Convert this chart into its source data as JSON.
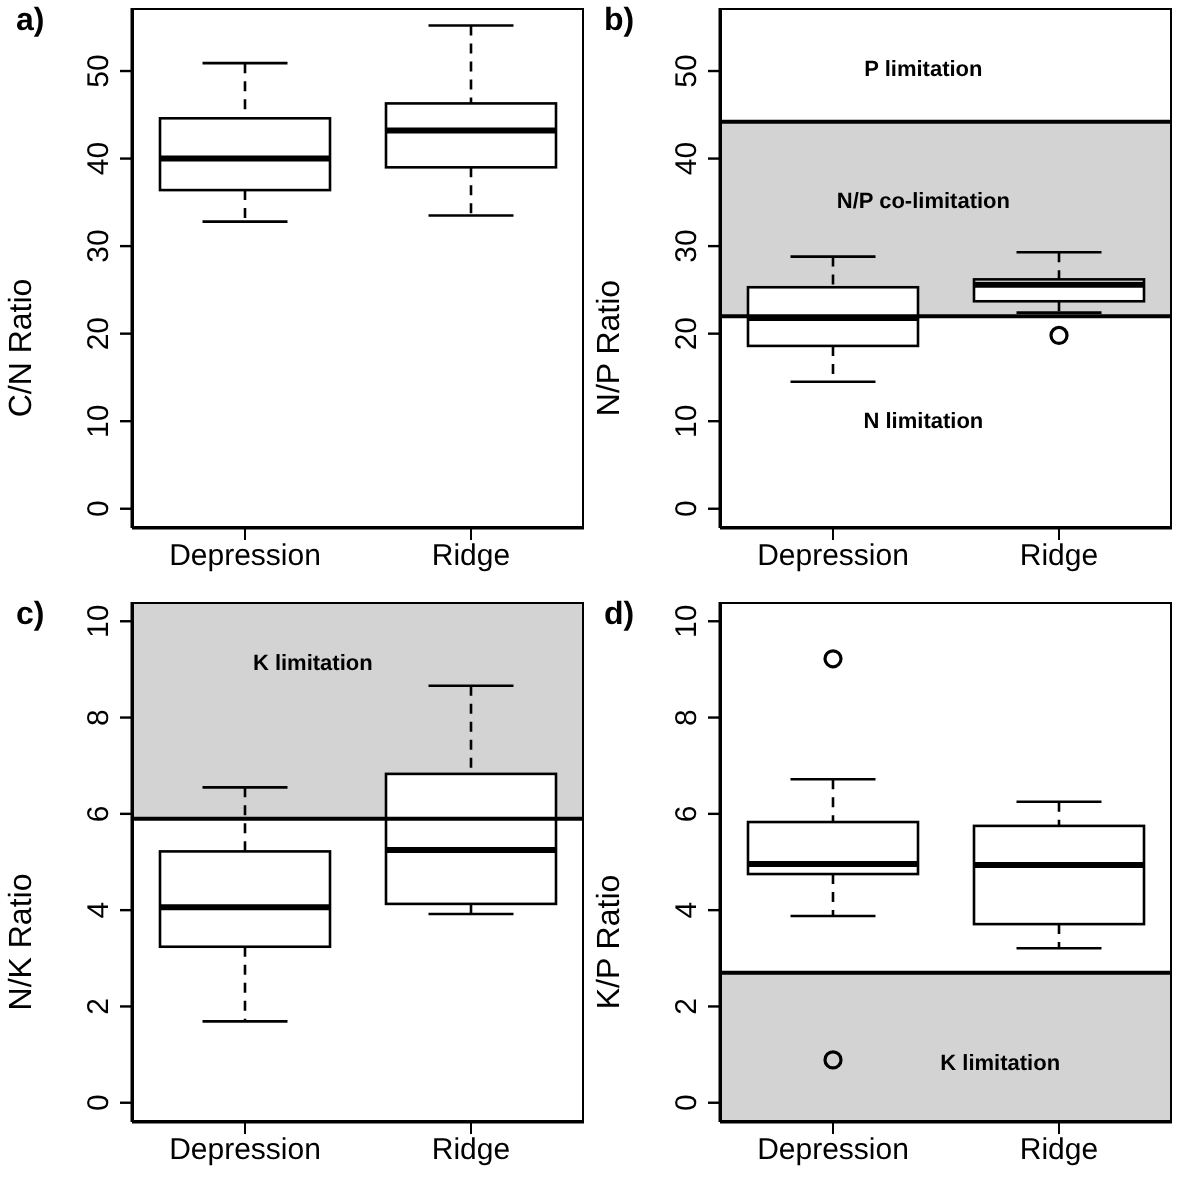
{
  "chart_data": [
    {
      "type": "box",
      "title": "a)",
      "ylabel": "C/N Ratio",
      "categories": [
        "Depression",
        "Ridge"
      ],
      "boxes": [
        {
          "low": 32.8,
          "q1": 36.4,
          "median": 40.0,
          "q3": 44.6,
          "high": 50.9
        },
        {
          "low": 33.5,
          "q1": 39.0,
          "median": 43.2,
          "q3": 46.3,
          "high": 55.2
        }
      ],
      "ylim": [
        -2.2,
        57.2
      ],
      "yticks": [
        0,
        10,
        20,
        30,
        40,
        50
      ]
    },
    {
      "type": "box",
      "title": "b)",
      "ylabel": "N/P Ratio",
      "categories": [
        "Depression",
        "Ridge"
      ],
      "boxes": [
        {
          "low": 14.5,
          "q1": 18.6,
          "median": 21.8,
          "q3": 25.3,
          "high": 28.8
        },
        {
          "low": 22.4,
          "q1": 23.7,
          "median": 25.6,
          "q3": 26.2,
          "high": 29.3,
          "outliers": [
            19.8
          ]
        }
      ],
      "ylim": [
        -2.2,
        57.2
      ],
      "yticks": [
        0,
        10,
        20,
        30,
        40,
        50
      ],
      "bands": [
        {
          "axis": "y",
          "from": 22.0,
          "to": 44.2,
          "color": "#d3d3d3"
        }
      ],
      "ref_lines": [
        {
          "axis": "y",
          "value": 22.0
        },
        {
          "axis": "y",
          "value": 44.2
        }
      ],
      "annotations": [
        "P limitation",
        "N/P co-limitation",
        "N limitation"
      ]
    },
    {
      "type": "box",
      "title": "c)",
      "ylabel": "N/K Ratio",
      "categories": [
        "Depression",
        "Ridge"
      ],
      "boxes": [
        {
          "low": 1.69,
          "q1": 3.24,
          "median": 4.06,
          "q3": 5.22,
          "high": 6.55
        },
        {
          "low": 3.92,
          "q1": 4.13,
          "median": 5.25,
          "q3": 6.83,
          "high": 8.66
        }
      ],
      "ylim": [
        -0.4,
        10.4
      ],
      "yticks": [
        0,
        2,
        4,
        6,
        8,
        10
      ],
      "bands": [
        {
          "axis": "y",
          "from": 5.9,
          "to": 10.4,
          "color": "#d3d3d3"
        }
      ],
      "ref_lines": [
        {
          "axis": "y",
          "value": 5.9
        }
      ],
      "annotations": [
        "K limitation"
      ]
    },
    {
      "type": "box",
      "title": "d)",
      "ylabel": "K/P Ratio",
      "categories": [
        "Depression",
        "Ridge"
      ],
      "boxes": [
        {
          "low": 3.88,
          "q1": 4.75,
          "median": 4.96,
          "q3": 5.83,
          "high": 6.72,
          "outliers": [
            9.22,
            0.89
          ]
        },
        {
          "low": 3.21,
          "q1": 3.71,
          "median": 4.94,
          "q3": 5.75,
          "high": 6.25
        }
      ],
      "ylim": [
        -0.4,
        10.4
      ],
      "yticks": [
        0,
        2,
        4,
        6,
        8,
        10
      ],
      "bands": [
        {
          "axis": "y",
          "from": -0.4,
          "to": 2.7,
          "color": "#d3d3d3"
        }
      ],
      "ref_lines": [
        {
          "axis": "y",
          "value": 2.7
        }
      ],
      "annotations": [
        "K limitation"
      ]
    }
  ]
}
